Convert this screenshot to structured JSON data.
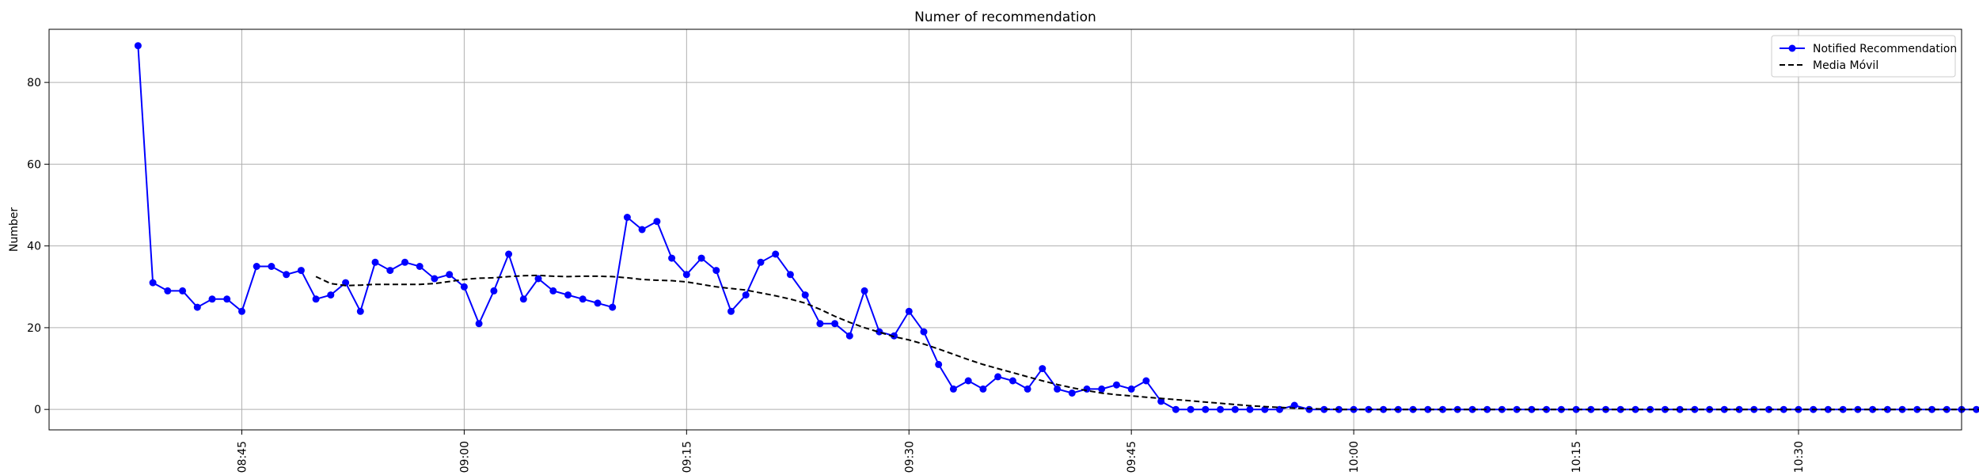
{
  "chart_data": {
    "type": "line",
    "title": "Numer of recommendation",
    "xlabel": "",
    "ylabel": "Number",
    "x_start": "08:38",
    "x_interval_minutes": 1,
    "xlim": [
      "08:32",
      "10:41"
    ],
    "ylim": [
      -5,
      93
    ],
    "yticks": [
      0,
      20,
      40,
      60,
      80
    ],
    "xticks": [
      "08:45",
      "09:00",
      "09:15",
      "09:30",
      "09:45",
      "10:00",
      "10:15",
      "10:30"
    ],
    "xtick_labels": [
      "7 08:45",
      "7 09:00",
      "7 09:15",
      "7 09:30",
      "7 09:45",
      "7 10:00",
      "7 10:15",
      "7 10:30"
    ],
    "grid": true,
    "legend_position": "top-right",
    "series": [
      {
        "name": "Notified Recommendation",
        "style": "line-markers",
        "color": "#0000ff",
        "values": [
          89,
          31,
          29,
          29,
          25,
          27,
          27,
          24,
          35,
          35,
          33,
          34,
          27,
          28,
          31,
          24,
          36,
          34,
          36,
          35,
          32,
          33,
          30,
          21,
          29,
          38,
          27,
          32,
          29,
          28,
          27,
          26,
          25,
          47,
          44,
          46,
          37,
          33,
          37,
          34,
          24,
          28,
          36,
          38,
          33,
          28,
          21,
          21,
          18,
          29,
          19,
          18,
          24,
          19,
          11,
          5,
          7,
          5,
          8,
          7,
          5,
          10,
          5,
          4,
          5,
          5,
          6,
          5,
          7,
          2,
          0,
          0,
          0,
          0,
          0,
          0,
          0,
          0,
          1,
          0,
          0,
          0,
          0,
          0,
          0,
          0,
          0,
          0,
          0,
          0,
          0,
          0,
          0,
          0,
          0,
          0,
          0,
          0,
          0,
          0,
          0,
          0,
          0,
          0,
          0,
          0,
          0,
          0,
          0,
          0,
          0,
          0,
          0,
          0,
          0,
          0,
          0,
          0,
          0,
          0,
          0,
          0,
          0,
          0,
          0,
          0,
          0,
          0,
          0,
          0,
          0,
          0,
          0,
          0,
          0,
          0,
          0,
          0,
          0,
          0,
          0,
          0,
          0,
          0,
          0,
          0,
          0,
          0
        ]
      },
      {
        "name": "Media Móvil",
        "style": "dashed",
        "color": "#000000",
        "values": [
          null,
          null,
          null,
          null,
          null,
          null,
          null,
          null,
          null,
          null,
          null,
          null,
          32.5,
          30.8,
          30.3,
          30.4,
          30.6,
          30.6,
          30.6,
          30.6,
          30.8,
          31.3,
          31.8,
          32.1,
          32.2,
          32.5,
          32.7,
          32.8,
          32.6,
          32.5,
          32.6,
          32.6,
          32.5,
          32.2,
          31.8,
          31.6,
          31.5,
          31.2,
          30.6,
          30.0,
          29.6,
          29.2,
          28.5,
          27.8,
          27.0,
          26.0,
          24.5,
          22.8,
          21.3,
          20.0,
          18.9,
          17.8,
          17.0,
          16.0,
          14.8,
          13.5,
          12.2,
          11.0,
          10.0,
          9.0,
          8.0,
          7.0,
          6.1,
          5.3,
          4.6,
          4.0,
          3.6,
          3.3,
          3.0,
          2.7,
          2.4,
          2.1,
          1.8,
          1.5,
          1.2,
          0.9,
          0.7,
          0.5,
          0.3,
          0.2,
          0.1,
          0,
          0,
          0,
          0,
          0,
          0,
          0,
          0,
          0,
          0,
          0,
          0,
          0,
          0,
          0,
          0,
          0,
          0,
          0,
          0,
          0,
          0,
          0,
          0,
          0,
          0,
          0,
          0,
          0,
          0,
          0,
          0,
          0,
          0,
          0,
          0,
          0,
          0,
          0,
          0,
          0,
          0,
          0,
          0,
          0,
          0,
          0,
          0,
          0,
          0,
          0,
          0,
          0,
          0,
          0,
          0,
          0,
          0,
          0,
          0,
          0,
          0,
          0,
          0,
          0,
          0,
          0
        ]
      }
    ]
  }
}
